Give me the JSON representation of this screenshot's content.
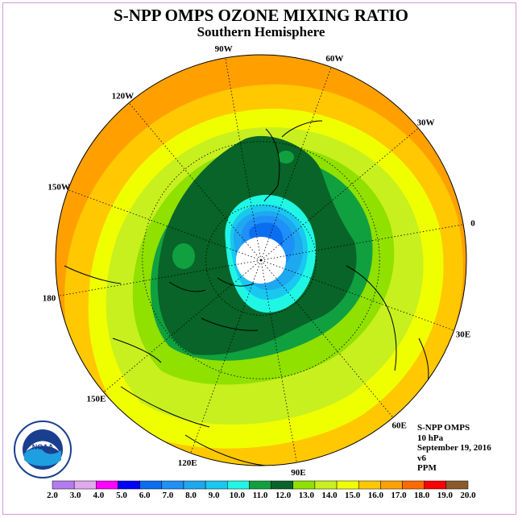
{
  "title": "S-NPP OMPS OZONE MIXING RATIO",
  "subtitle": "Southern Hemisphere",
  "map": {
    "projection": "polar-stereographic-south",
    "longitude_labels": [
      {
        "text": "0",
        "lon": 0
      },
      {
        "text": "30E",
        "lon": 30
      },
      {
        "text": "60E",
        "lon": 60
      },
      {
        "text": "90E",
        "lon": 90
      },
      {
        "text": "120E",
        "lon": 120
      },
      {
        "text": "150E",
        "lon": 150
      },
      {
        "text": "180",
        "lon": 180
      },
      {
        "text": "150W",
        "lon": -150
      },
      {
        "text": "120W",
        "lon": -120
      },
      {
        "text": "90W",
        "lon": -90
      },
      {
        "text": "60W",
        "lon": -60
      },
      {
        "text": "30W",
        "lon": -30
      }
    ],
    "latitude_circles": [
      -30,
      -60
    ]
  },
  "info": {
    "instrument": "S-NPP OMPS",
    "level": "10 hPa",
    "date": "September 19, 2016",
    "version": "v6",
    "units": "PPM"
  },
  "logo": {
    "text": "NOAA",
    "icon": "noaa-logo-icon"
  },
  "colorbar": {
    "labels": [
      "2.0",
      "3.0",
      "4.0",
      "5.0",
      "6.0",
      "7.0",
      "8.0",
      "9.0",
      "10.0",
      "11.0",
      "12.0",
      "13.0",
      "14.0",
      "15.0",
      "16.0",
      "17.0",
      "18.0",
      "19.0",
      "20.0"
    ],
    "colors": [
      "#b27cf0",
      "#e0a8ee",
      "#ff00ff",
      "#0000ff",
      "#0a6ef0",
      "#1e90f8",
      "#1ea8f0",
      "#19c7f0",
      "#1ff7e4",
      "#10a040",
      "#086428",
      "#90e000",
      "#c8f01e",
      "#f0ff00",
      "#ffc800",
      "#ffa000",
      "#ff6a00",
      "#ff0000",
      "#8b5a2b"
    ]
  }
}
